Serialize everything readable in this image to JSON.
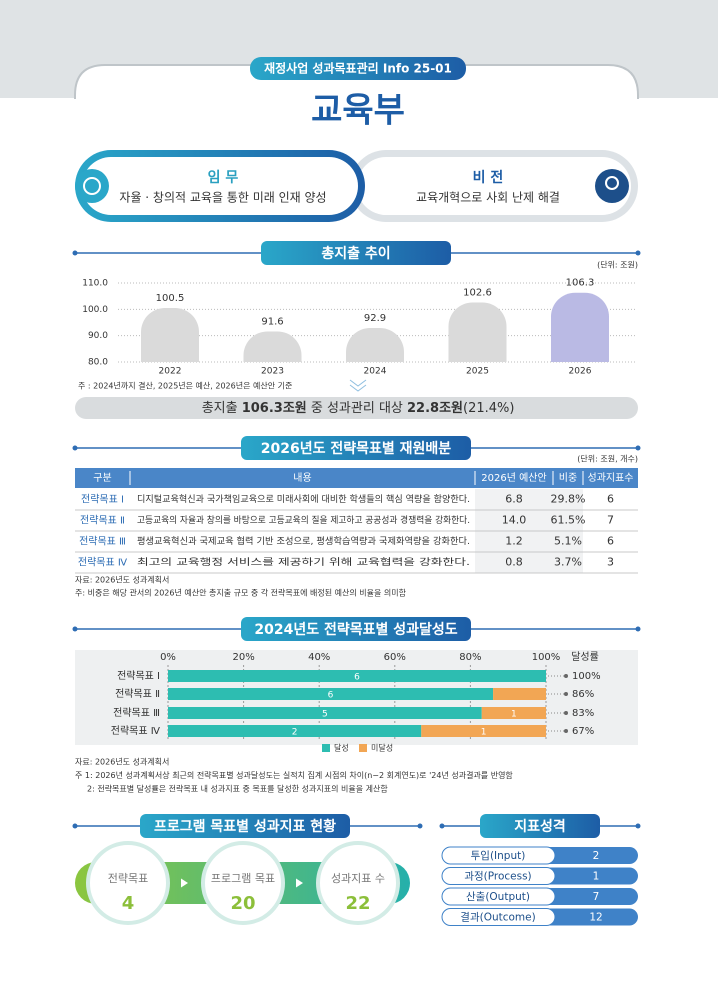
{
  "header": {
    "badge": "재정사업 성과목표관리 Info 25-01",
    "title": "교육부"
  },
  "mission": {
    "label": "임 무",
    "text": "자율 · 창의적 교육을 통한 미래 인재 양성"
  },
  "vision": {
    "label": "비 전",
    "text": "교육개혁으로 사회 난제 해결"
  },
  "spending": {
    "title": "총지출 추이",
    "unit": "(단위: 조원)",
    "chart": {
      "type": "bar",
      "categories": [
        "2022",
        "2023",
        "2024",
        "2025",
        "2026"
      ],
      "values": [
        100.5,
        91.6,
        92.9,
        102.6,
        106.3
      ],
      "colors": [
        "#dadada",
        "#dadada",
        "#dadada",
        "#dadada",
        "#babae4"
      ],
      "ylim": [
        80,
        110
      ],
      "yticks": [
        {
          "value": 80,
          "label": "80.0"
        },
        {
          "value": 90,
          "label": "90.0"
        },
        {
          "value": 100,
          "label": "100.0"
        },
        {
          "value": 110,
          "label": "110.0"
        }
      ],
      "grid": true
    },
    "note": "주 : 2024년까지 결산, 2025년은 예산, 2026년은 예산안 기준",
    "summary": [
      "총지출 ",
      "106.3조원",
      " 중 성과관리 대상 ",
      "22.8조원",
      "(21.4%)"
    ]
  },
  "budget": {
    "title": "2026년도 전략목표별 재원배분",
    "unit": "(단위: 조원, 개수)",
    "headers": [
      "구분",
      "내용",
      "2026년 예산안",
      "비중",
      "성과지표수"
    ],
    "rows": [
      [
        "전략목표 Ⅰ",
        "디지털교육혁신과 국가책임교육으로 미래사회에 대비한 학생들의 핵심 역량을 함양한다.",
        "6.8",
        "29.8%",
        "6"
      ],
      [
        "전략목표 Ⅱ",
        "고등교육의 자율과 창의를 바탕으로 고등교육의 질을 제고하고 공공성과 경쟁력을 강화한다.",
        "14.0",
        "61.5%",
        "7"
      ],
      [
        "전략목표 Ⅲ",
        "평생교육혁신과 국제교육 협력 기반 조성으로, 평생학습역량과 국제화역량을 강화한다.",
        "1.2",
        "5.1%",
        "6"
      ],
      [
        "전략목표 Ⅳ",
        "최고의 교육행정 서비스를 제공하기 위해 교육협력을 강화한다.",
        "0.8",
        "3.7%",
        "3"
      ]
    ],
    "notes": [
      "자료: 2026년도 성과계획서",
      "주: 비중은 해당 관서의 2026년 예산안 총지출 규모 중 각 전략목표에 배정된 예산의 비율을 의미함"
    ]
  },
  "achievement": {
    "title": "2024년도 전략목표별 성과달성도",
    "chart": {
      "type": "stacked-horizontal-bar",
      "categories": [
        "전략목표 Ⅰ",
        "전략목표 Ⅱ",
        "전략목표 Ⅲ",
        "전략목표 Ⅳ"
      ],
      "rate_header": "달성률",
      "xlim": [
        0,
        100
      ],
      "xticks": [
        {
          "value": 0,
          "label": "0%"
        },
        {
          "value": 20,
          "label": "20%"
        },
        {
          "value": 40,
          "label": "40%"
        },
        {
          "value": 60,
          "label": "60%"
        },
        {
          "value": 80,
          "label": "80%"
        },
        {
          "value": 100,
          "label": "100%"
        }
      ],
      "grid": true,
      "series": [
        {
          "name": "달성",
          "color": "#2dbdb1",
          "values": [
            100,
            86,
            83,
            67
          ],
          "value_labels": [
            "100%",
            "86%",
            "83%",
            "67%"
          ],
          "counts": [
            6,
            6,
            5,
            2
          ]
        },
        {
          "name": "미달성",
          "color": "#f2a654",
          "values": [
            0,
            14,
            17,
            33
          ],
          "counts": [
            null,
            null,
            1,
            1
          ]
        }
      ]
    },
    "notes": [
      "자료: 2026년도 성과계획서",
      "주 1: 2026년 성과계획서상 최근의 전략목표별 성과달성도는 실적치 집계 시점의 차이(n−2 회계연도)로 '24년 성과결과를 반영함",
      "2: 전략목표별 달성률은 전략목표 내 성과지표 중 목표를 달성한 성과지표의 비율을 계산함"
    ]
  },
  "program": {
    "title": "프로그램 목표별 성과지표 현황",
    "items": [
      {
        "label": "전략목표",
        "value": 4
      },
      {
        "label": "프로그램 목표",
        "value": 20
      },
      {
        "label": "성과지표 수",
        "value": 22
      }
    ]
  },
  "indicators": {
    "title": "지표성격",
    "rows": [
      {
        "label": "투입(Input)",
        "value": 2
      },
      {
        "label": "과정(Process)",
        "value": 1
      },
      {
        "label": "산출(Output)",
        "value": 7
      },
      {
        "label": "결과(Outcome)",
        "value": 12
      }
    ]
  }
}
